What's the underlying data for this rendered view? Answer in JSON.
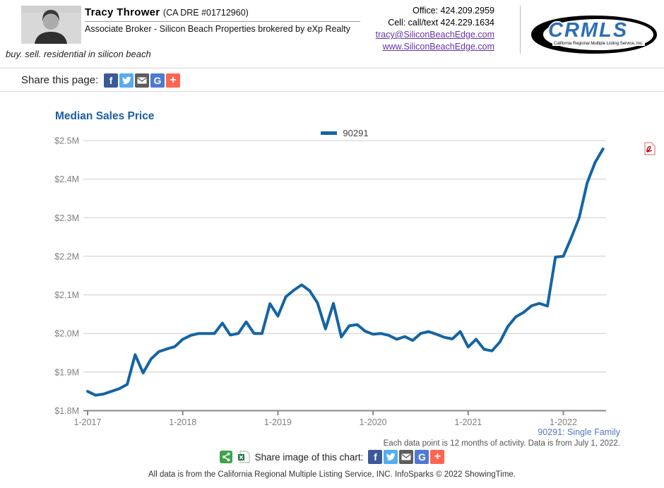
{
  "header": {
    "agent_name": "Tracy Thrower",
    "agent_license": "(CA DRE #01712960)",
    "agent_title": "Associate Broker - Silicon Beach Properties brokered by eXp Realty",
    "tagline": "buy. sell. residential in silicon beach",
    "office_phone": "Office: 424.209.2959",
    "cell_phone": "Cell: call/text 424.229.1634",
    "email_link": "tracy@SiliconBeachEdge.com",
    "website_link": "www.SiliconBeachEdge.com",
    "logo_text": "CRMLS",
    "logo_caption": "California Regional Multiple Listing Service, Inc."
  },
  "share_bar": {
    "label": "Share this page:",
    "icons": [
      "facebook-icon",
      "twitter-icon",
      "email-icon",
      "google-icon",
      "plus-icon",
      "pdf-icon"
    ]
  },
  "chart": {
    "title": "Median Sales Price",
    "legend_label": "90291",
    "series_note_link": "90291: Single Family",
    "footnote": "Each data point is 12 months of activity. Data is from July 1, 2022.",
    "line_color": "#1464A4",
    "gridline_color": "#cccccc",
    "axis_color": "#898989",
    "tick_label_color": "#7f7f7f"
  },
  "chart_data": {
    "type": "line",
    "title": "Median Sales Price",
    "x": [
      "1-2017",
      "2-2017",
      "3-2017",
      "4-2017",
      "5-2017",
      "6-2017",
      "7-2017",
      "8-2017",
      "9-2017",
      "10-2017",
      "11-2017",
      "12-2017",
      "1-2018",
      "2-2018",
      "3-2018",
      "4-2018",
      "5-2018",
      "6-2018",
      "7-2018",
      "8-2018",
      "9-2018",
      "10-2018",
      "11-2018",
      "12-2018",
      "1-2019",
      "2-2019",
      "3-2019",
      "4-2019",
      "5-2019",
      "6-2019",
      "7-2019",
      "8-2019",
      "9-2019",
      "10-2019",
      "11-2019",
      "12-2019",
      "1-2020",
      "2-2020",
      "3-2020",
      "4-2020",
      "5-2020",
      "6-2020",
      "7-2020",
      "8-2020",
      "9-2020",
      "10-2020",
      "11-2020",
      "12-2020",
      "1-2021",
      "2-2021",
      "3-2021",
      "4-2021",
      "5-2021",
      "6-2021",
      "7-2021",
      "8-2021",
      "9-2021",
      "10-2021",
      "11-2021",
      "12-2021",
      "1-2022",
      "2-2022",
      "3-2022",
      "4-2022",
      "5-2022",
      "6-2022"
    ],
    "series": [
      {
        "name": "90291",
        "values": [
          1.85,
          1.84,
          1.843,
          1.85,
          1.857,
          1.868,
          1.945,
          1.898,
          1.934,
          1.953,
          1.96,
          1.966,
          1.985,
          1.995,
          2.0,
          2.0,
          2.0,
          2.027,
          1.996,
          2.0,
          2.03,
          2.0,
          2.0,
          2.077,
          2.045,
          2.095,
          2.112,
          2.126,
          2.111,
          2.079,
          2.012,
          2.078,
          1.991,
          2.02,
          2.023,
          2.006,
          1.998,
          2.0,
          1.995,
          1.985,
          1.992,
          1.982,
          2.0,
          2.005,
          1.998,
          1.99,
          1.986,
          2.005,
          1.965,
          1.985,
          1.959,
          1.955,
          1.978,
          2.018,
          2.043,
          2.055,
          2.072,
          2.078,
          2.071,
          2.198,
          2.2,
          2.248,
          2.3,
          2.39,
          2.443,
          2.478
        ]
      }
    ],
    "ylim": [
      1.8,
      2.5
    ],
    "y_ticks": [
      2.5,
      2.4,
      2.3,
      2.2,
      2.1,
      2.0,
      1.9,
      1.8
    ],
    "y_tick_labels": [
      "$2.5M",
      "$2.4M",
      "$2.3M",
      "$2.2M",
      "$2.1M",
      "$2.0M",
      "$1.9M",
      "$1.8M"
    ],
    "x_tick_indices": [
      0,
      12,
      24,
      36,
      48,
      60
    ],
    "x_tick_labels": [
      "1-2017",
      "1-2018",
      "1-2019",
      "1-2020",
      "1-2021",
      "1-2022"
    ],
    "legend_position": "top-center",
    "grid": "horizontal-only"
  },
  "footer": {
    "share_label": "Share image of this chart:",
    "icons": [
      "share-icon",
      "excel-icon",
      "facebook-icon",
      "twitter-icon",
      "email-icon",
      "google-icon",
      "plus-icon"
    ],
    "attribution": "All data is from the California Regional Multiple Listing Service, INC. InfoSparks © 2022 ShowingTime."
  },
  "colors": {
    "facebook": "#3B5998",
    "twitter": "#55ACEE",
    "email": "#5D5D5D",
    "google": "#4E7AD1",
    "plus": "#FF6550",
    "share_green": "#3BA548",
    "excel_green": "#1E7145",
    "title_blue": "#1B5FA4",
    "series_note_blue": "#4F7AC7",
    "link_purple": "#6633AA"
  }
}
